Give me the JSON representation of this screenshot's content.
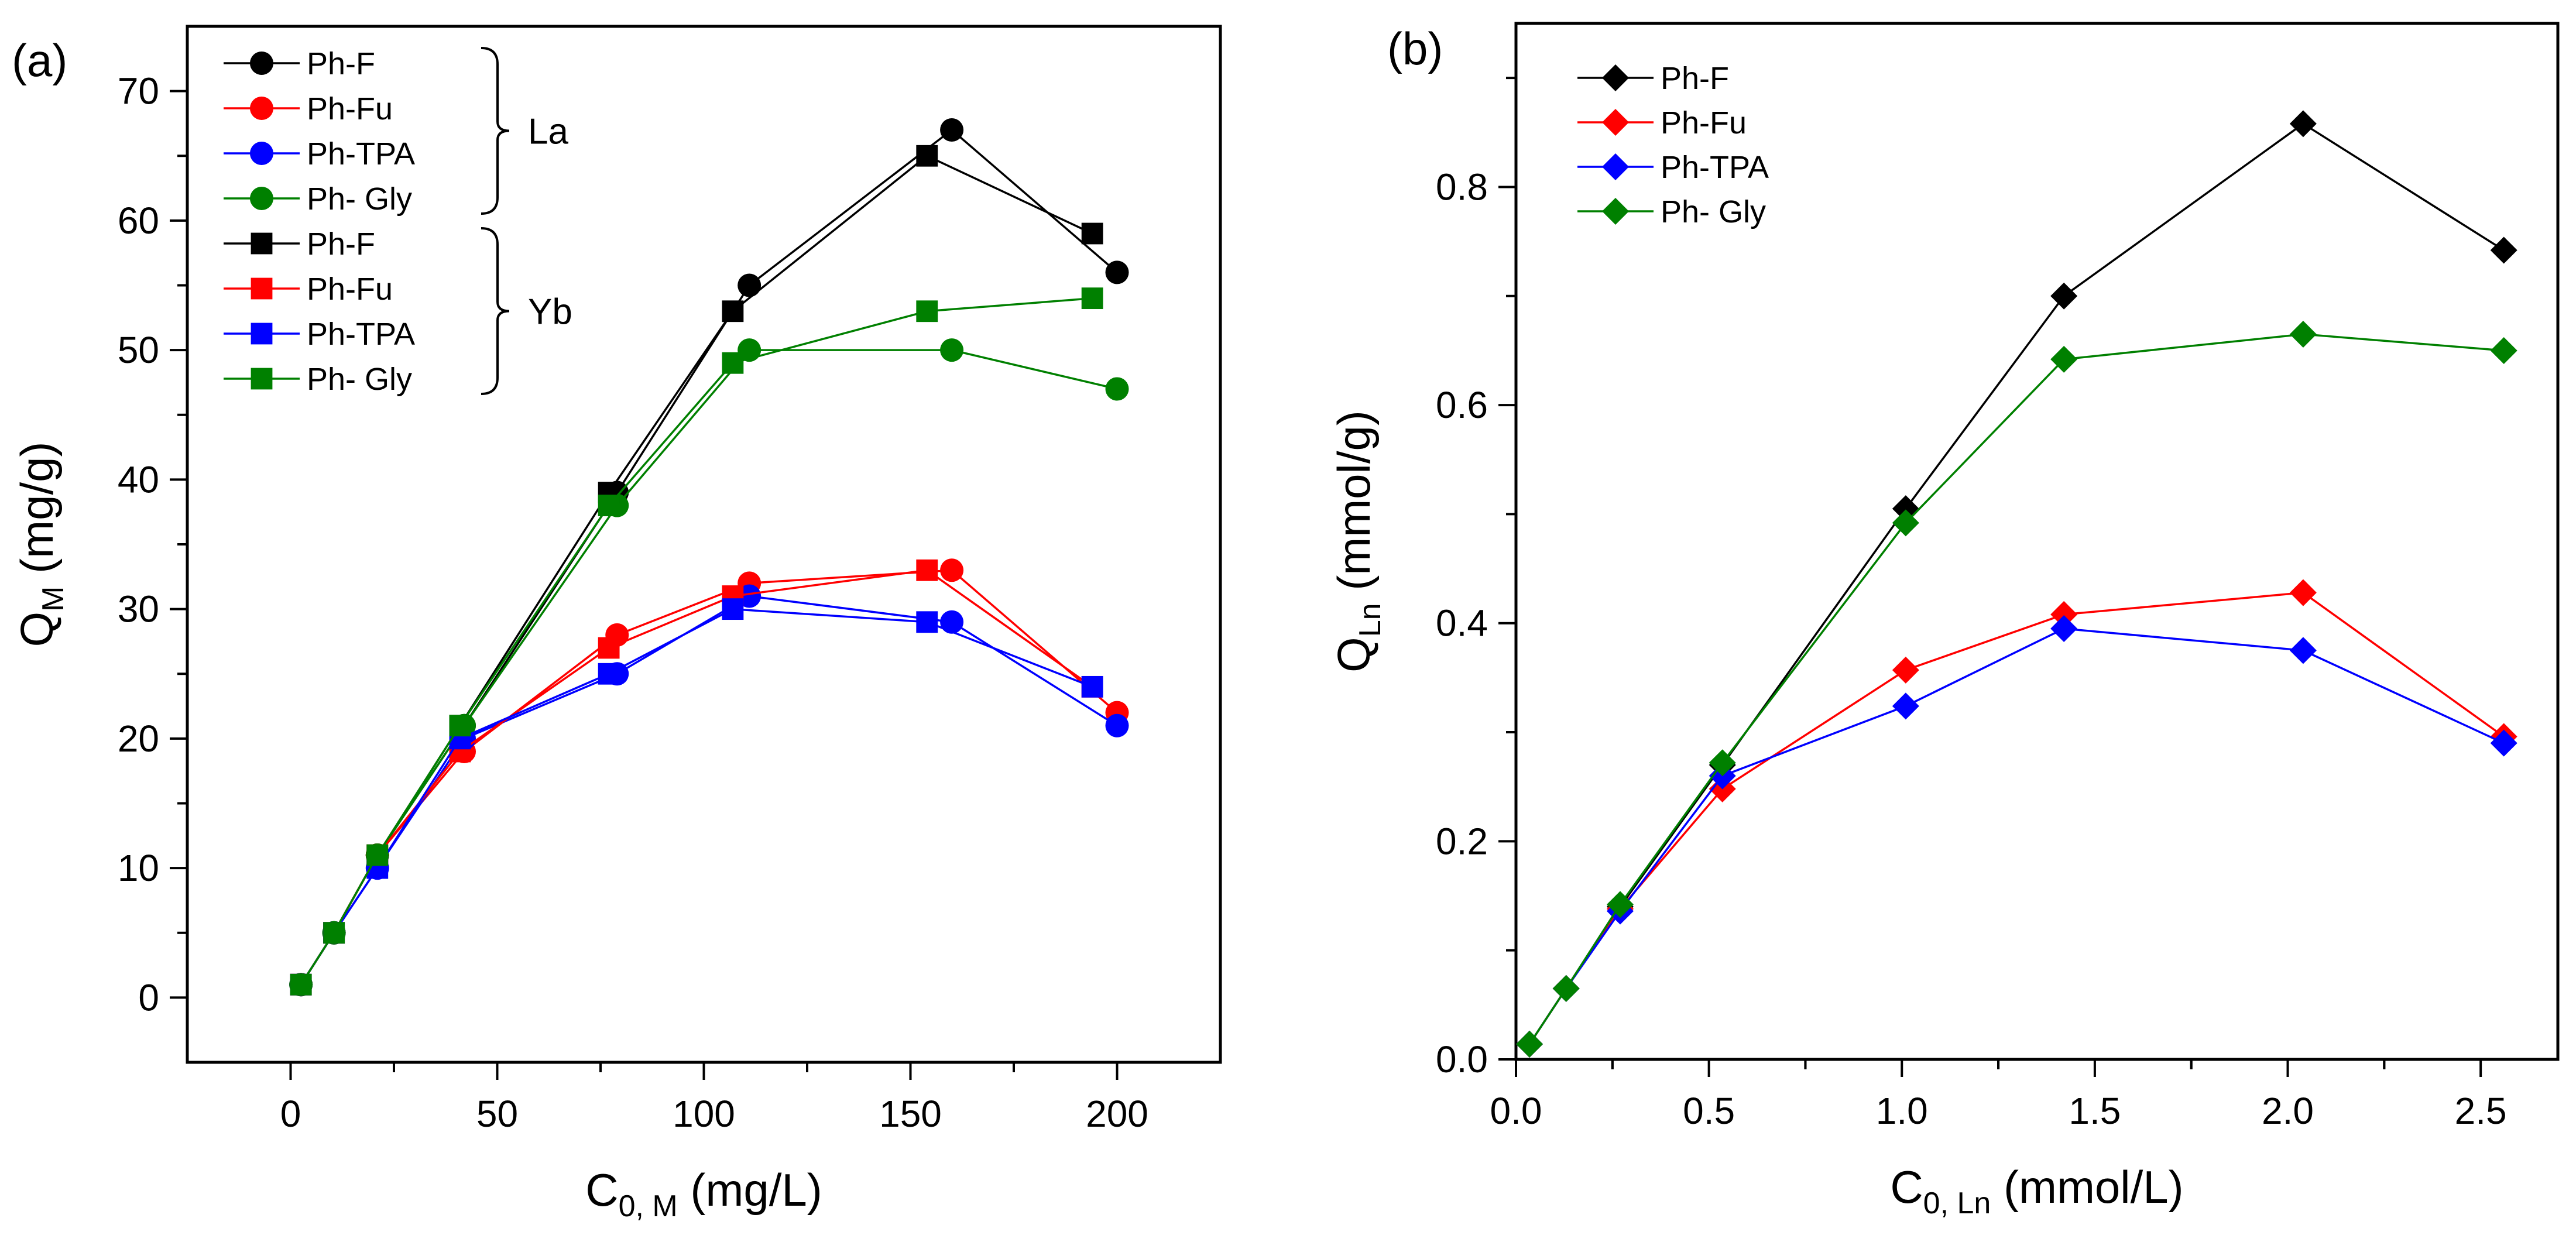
{
  "chart_data": [
    {
      "type": "line",
      "panel_label": "(a)",
      "xlabel_main": "C",
      "xlabel_sub": "0, M",
      "xlabel_unit": " (mg/L)",
      "ylabel_main": "Q",
      "ylabel_sub": "M",
      "ylabel_unit": " (mg/g)",
      "xlim": [
        -25,
        225
      ],
      "ylim": [
        -5,
        75
      ],
      "xticks": [
        0,
        50,
        100,
        150,
        200
      ],
      "yticks": [
        0,
        10,
        20,
        30,
        40,
        50,
        60,
        70
      ],
      "xtick_labels": [
        "0",
        "50",
        "100",
        "150",
        "200"
      ],
      "ytick_labels": [
        "0",
        "10",
        "20",
        "30",
        "40",
        "50",
        "60",
        "70"
      ],
      "legend_groups": [
        {
          "label": "La",
          "series_names": [
            "Ph-F",
            "Ph-Fu",
            "Ph-TPA",
            "Ph- Gly"
          ]
        },
        {
          "label": "Yb",
          "series_names": [
            "Ph-F",
            "Ph-Fu",
            "Ph-TPA",
            "Ph- Gly"
          ]
        }
      ],
      "series": [
        {
          "name": "Ph-F",
          "group": "La",
          "marker": "circle",
          "color": "#000000",
          "x": [
            2.5,
            10.5,
            21,
            42,
            79,
            111,
            160,
            200
          ],
          "y": [
            1,
            5,
            11,
            21,
            39,
            55,
            67,
            56
          ]
        },
        {
          "name": "Ph-Fu",
          "group": "La",
          "marker": "circle",
          "color": "#ff0000",
          "x": [
            2.5,
            10.5,
            21,
            42,
            79,
            111,
            160,
            200
          ],
          "y": [
            1,
            5,
            11,
            19,
            28,
            32,
            33,
            22
          ]
        },
        {
          "name": "Ph-TPA",
          "group": "La",
          "marker": "circle",
          "color": "#0000ff",
          "x": [
            2.5,
            10.5,
            21,
            42,
            79,
            111,
            160,
            200
          ],
          "y": [
            1,
            5,
            10,
            20,
            25,
            31,
            29,
            21
          ]
        },
        {
          "name": "Ph- Gly",
          "group": "La",
          "marker": "circle",
          "color": "#008000",
          "x": [
            2.5,
            10.5,
            21,
            42,
            79,
            111,
            160,
            200
          ],
          "y": [
            1,
            5,
            11,
            21,
            38,
            50,
            50,
            47
          ]
        },
        {
          "name": "Ph-F",
          "group": "Yb",
          "marker": "square",
          "color": "#000000",
          "x": [
            2.5,
            10.5,
            21,
            41,
            77,
            107,
            154,
            194
          ],
          "y": [
            1,
            5,
            11,
            21,
            39,
            53,
            65,
            59
          ]
        },
        {
          "name": "Ph-Fu",
          "group": "Yb",
          "marker": "square",
          "color": "#ff0000",
          "x": [
            2.5,
            10.5,
            21,
            41,
            77,
            107,
            154,
            194
          ],
          "y": [
            1,
            5,
            11,
            19,
            27,
            31,
            33,
            24
          ]
        },
        {
          "name": "Ph-TPA",
          "group": "Yb",
          "marker": "square",
          "color": "#0000ff",
          "x": [
            2.5,
            10.5,
            21,
            41,
            77,
            107,
            154,
            194
          ],
          "y": [
            1,
            5,
            10,
            20,
            25,
            30,
            29,
            24
          ]
        },
        {
          "name": "Ph- Gly",
          "group": "Yb",
          "marker": "square",
          "color": "#008000",
          "x": [
            2.5,
            10.5,
            21,
            41,
            77,
            107,
            154,
            194
          ],
          "y": [
            1,
            5,
            11,
            21,
            38,
            49,
            53,
            54
          ]
        }
      ]
    },
    {
      "type": "line",
      "panel_label": "(b)",
      "xlabel_main": "C",
      "xlabel_sub": "0, Ln",
      "xlabel_unit": " (mmol/L)",
      "ylabel_main": "Q",
      "ylabel_sub": "Ln",
      "ylabel_unit": " (mmol/g)",
      "xlim": [
        0,
        2.7
      ],
      "ylim": [
        0,
        0.95
      ],
      "xticks": [
        0,
        0.5,
        1.0,
        1.5,
        2.0,
        2.5
      ],
      "yticks": [
        0,
        0.2,
        0.4,
        0.6,
        0.8
      ],
      "xtick_labels": [
        "0.0",
        "0.5",
        "1.0",
        "1.5",
        "2.0",
        "2.5"
      ],
      "ytick_labels": [
        "0.0",
        "0.2",
        "0.4",
        "0.6",
        "0.8"
      ],
      "legend_groups": [],
      "series": [
        {
          "name": "Ph-F",
          "marker": "diamond",
          "color": "#000000",
          "x": [
            0.035,
            0.13,
            0.27,
            0.535,
            1.01,
            1.42,
            2.04,
            2.56
          ],
          "y": [
            0.014,
            0.065,
            0.14,
            0.27,
            0.505,
            0.7,
            0.858,
            0.742
          ]
        },
        {
          "name": "Ph-Fu",
          "marker": "diamond",
          "color": "#ff0000",
          "x": [
            0.035,
            0.13,
            0.27,
            0.535,
            1.01,
            1.42,
            2.04,
            2.56
          ],
          "y": [
            0.014,
            0.065,
            0.138,
            0.248,
            0.357,
            0.408,
            0.428,
            0.296
          ]
        },
        {
          "name": "Ph-TPA",
          "marker": "diamond",
          "color": "#0000ff",
          "x": [
            0.035,
            0.13,
            0.27,
            0.535,
            1.01,
            1.42,
            2.04,
            2.56
          ],
          "y": [
            0.014,
            0.065,
            0.136,
            0.26,
            0.324,
            0.395,
            0.375,
            0.29
          ]
        },
        {
          "name": "Ph- Gly",
          "marker": "diamond",
          "color": "#008000",
          "x": [
            0.035,
            0.13,
            0.27,
            0.535,
            1.01,
            1.42,
            2.04,
            2.56
          ],
          "y": [
            0.014,
            0.065,
            0.142,
            0.272,
            0.492,
            0.642,
            0.665,
            0.65
          ]
        }
      ]
    }
  ]
}
